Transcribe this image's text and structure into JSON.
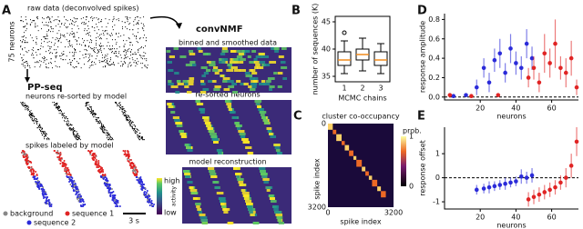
{
  "figure": {
    "panels": [
      "A",
      "B",
      "C",
      "D",
      "E"
    ],
    "raw_title": "raw data (deconvolved spikes)",
    "neurons_label": "75 neurons",
    "ppseq": "PP-seq",
    "resorted_model": "neurons re-sorted by model",
    "labeled": "spikes labeled by model",
    "scale": "3 s",
    "legend": [
      "background",
      "sequence 1",
      "sequence 2"
    ],
    "convnmf": "convNMF",
    "binned": "binned and smoothed data",
    "resorted": "re-sorted neurons",
    "reconstruction": "model reconstruction",
    "activity": "activity",
    "high": "high",
    "low": "low"
  },
  "chart_data": [
    {
      "type": "box",
      "ylabel": "number of sequences (K)",
      "xlabel": "MCMC chains",
      "categories": [
        "1",
        "2",
        "3"
      ],
      "whislo": [
        35.5,
        36,
        35.5
      ],
      "q1": [
        37,
        38,
        37
      ],
      "med": [
        38,
        39,
        38
      ],
      "q3": [
        39.5,
        40,
        39.5
      ],
      "whishi": [
        41.5,
        42,
        41
      ],
      "fliers": [
        43,
        null,
        null
      ],
      "color": "#f08a1c",
      "ylim": [
        34,
        46
      ],
      "yticks": [
        35,
        40,
        45
      ]
    },
    {
      "type": "heatmap",
      "title": "cluster co-occupancy",
      "xlabel": "spike index",
      "ylabel": "spike index",
      "colorbar_label": "prob.",
      "xlim": [
        0,
        3200
      ],
      "xticks": [
        0,
        3200
      ],
      "ylim": [
        0,
        3200
      ],
      "yticks": [
        0,
        3200
      ],
      "clim": [
        0,
        1
      ],
      "cticks": [
        0,
        1
      ]
    },
    {
      "type": "scatter",
      "xlabel": "neurons",
      "ylabel": "response amplitude",
      "xlim": [
        0,
        75
      ],
      "ylim": [
        -0.03,
        0.86
      ],
      "xticks": [
        20,
        40,
        60
      ],
      "yticks": [
        {
          "value": 0,
          "label": "0.0"
        },
        {
          "value": 0.2,
          "label": "0.2"
        },
        {
          "value": 0.4,
          "label": "0.4"
        },
        {
          "value": 0.6,
          "label": "0.6"
        },
        {
          "value": 0.8,
          "label": "0.8"
        }
      ],
      "series": [
        {
          "color": "#2b2bd9",
          "x": [
            5,
            12,
            18,
            22,
            25,
            28,
            31,
            34,
            37,
            40,
            43,
            46,
            49
          ],
          "values": [
            0.01,
            0.02,
            0.1,
            0.3,
            0.15,
            0.38,
            0.45,
            0.25,
            0.5,
            0.35,
            0.3,
            0.55,
            0.4
          ],
          "errors": [
            0.02,
            0.02,
            0.08,
            0.1,
            0.1,
            0.12,
            0.15,
            0.1,
            0.15,
            0.12,
            0.12,
            0.15,
            0.12
          ]
        },
        {
          "color": "#e02424",
          "x": [
            3,
            15,
            30,
            47,
            50,
            53,
            56,
            59,
            62,
            65,
            68,
            71,
            74
          ],
          "values": [
            0.02,
            0.01,
            0.02,
            0.2,
            0.3,
            0.15,
            0.45,
            0.35,
            0.55,
            0.3,
            0.25,
            0.4,
            0.1
          ],
          "errors": [
            0.02,
            0.02,
            0.02,
            0.1,
            0.12,
            0.1,
            0.2,
            0.15,
            0.25,
            0.12,
            0.15,
            0.18,
            0.08
          ]
        }
      ]
    },
    {
      "type": "scatter",
      "xlabel": "neurons",
      "ylabel": "response offset",
      "xlim": [
        0,
        75
      ],
      "ylim": [
        -1.3,
        2.1
      ],
      "xticks": [
        20,
        40,
        60
      ],
      "yticks": [
        -1,
        0,
        1
      ],
      "series": [
        {
          "color": "#2b2bd9",
          "x": [
            18,
            22,
            25,
            28,
            31,
            34,
            37,
            40,
            43,
            46,
            49
          ],
          "values": [
            -0.5,
            -0.45,
            -0.4,
            -0.35,
            -0.3,
            -0.25,
            -0.2,
            -0.15,
            0.05,
            0,
            0.1
          ],
          "errors": [
            0.2,
            0.2,
            0.25,
            0.2,
            0.2,
            0.25,
            0.2,
            0.2,
            0.3,
            0.25,
            0.3
          ],
          "values_unused": null
        },
        {
          "color": "#e02424",
          "x": [
            47,
            50,
            53,
            56,
            59,
            62,
            65,
            68,
            71,
            74
          ],
          "values": [
            -0.9,
            -0.8,
            -0.7,
            -0.6,
            -0.5,
            -0.4,
            -0.2,
            0,
            0.5,
            1.5
          ],
          "errors": [
            0.3,
            0.3,
            0.3,
            0.3,
            0.3,
            0.3,
            0.3,
            0.4,
            0.5,
            0.6
          ]
        }
      ]
    }
  ]
}
